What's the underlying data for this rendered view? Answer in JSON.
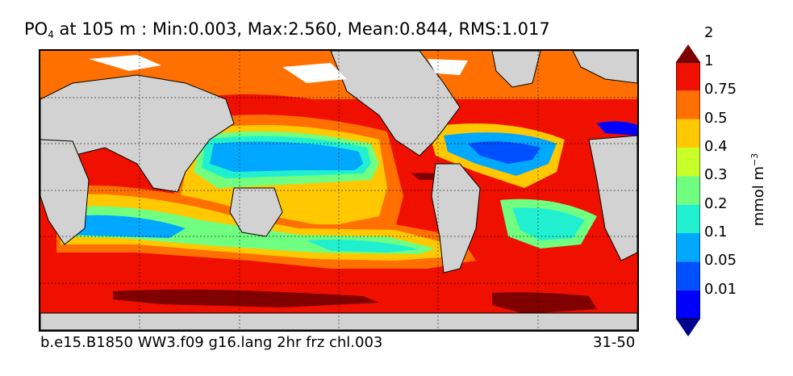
{
  "title": {
    "variable_main": "PO",
    "variable_sub": "4",
    "rest": " at 105 m : Min:0.003, Max:2.560, Mean:0.844, RMS:1.017"
  },
  "footer": {
    "case_name": "b.e15.B1850 WW3.f09 g16.lang 2hr frz chl.003",
    "years": "31-50"
  },
  "colorbar": {
    "label_main": "mmol m",
    "label_exp": "−3",
    "ticks": [
      "0.01",
      "0.05",
      "0.1",
      "0.2",
      "0.3",
      "0.4",
      "0.5",
      "0.75",
      "1",
      "2"
    ],
    "colors": [
      "#00008f",
      "#0000ff",
      "#0050ff",
      "#00a8ff",
      "#20f0d0",
      "#70ff80",
      "#c8ff28",
      "#ffc800",
      "#ff7000",
      "#f01000",
      "#800000"
    ],
    "extend": "both"
  },
  "map": {
    "land_color": "#d2d2d2",
    "ice_color": "#ffffff",
    "gridlines": true
  }
}
